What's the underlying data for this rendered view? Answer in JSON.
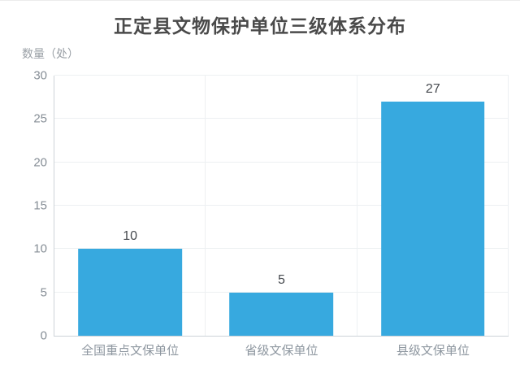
{
  "title": "正定县文物保护单位三级体系分布",
  "y_axis_name": "数量（处）",
  "colors": {
    "bar": "#37a9df",
    "title_text": "#4a4a4a",
    "axis_line": "#cdd3d8",
    "grid_line": "#edf0f2",
    "tick_text": "#868e96",
    "category_text": "#8e97a0",
    "value_text": "#45494e",
    "axis_name_text": "#9aa0a6",
    "background": "#ffffff"
  },
  "chart_data": {
    "type": "bar",
    "title": "正定县文物保护单位三级体系分布",
    "xlabel": "",
    "ylabel": "数量（处）",
    "categories": [
      "全国重点文保单位",
      "省级文保单位",
      "县级文保单位"
    ],
    "values": [
      10,
      5,
      27
    ],
    "value_labels": [
      "10",
      "5",
      "27"
    ],
    "ylim": [
      0,
      30
    ],
    "yticks": [
      0,
      5,
      10,
      15,
      20,
      25,
      30
    ],
    "grid": true,
    "legend_position": "none"
  }
}
